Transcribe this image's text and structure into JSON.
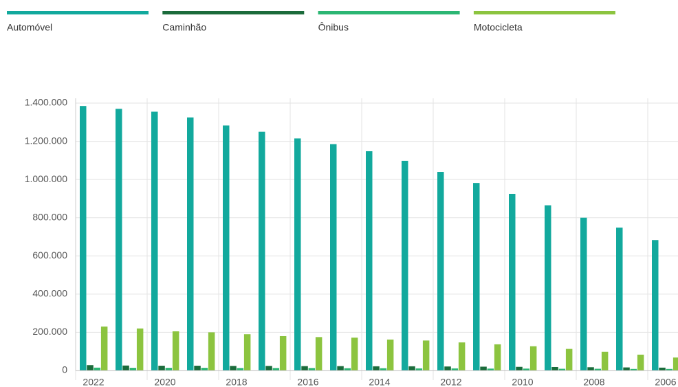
{
  "chart_data": {
    "type": "bar",
    "categories": [
      "2022",
      null,
      "2020",
      null,
      "2018",
      null,
      "2016",
      null,
      "2014",
      null,
      "2012",
      null,
      "2010",
      null,
      "2008",
      null,
      "2006"
    ],
    "series": [
      {
        "name": "Automóvel",
        "color": "#12a99d",
        "values": [
          1385000,
          1370000,
          1355000,
          1325000,
          1283000,
          1250000,
          1215000,
          1185000,
          1148000,
          1098000,
          1040000,
          982000,
          925000,
          865000,
          800000,
          748000,
          683000
        ]
      },
      {
        "name": "Caminhão",
        "color": "#1b6b3b",
        "values": [
          28000,
          26000,
          25000,
          25000,
          24000,
          24000,
          23000,
          23000,
          22000,
          22000,
          21000,
          20000,
          19000,
          18000,
          17000,
          16000,
          15000
        ]
      },
      {
        "name": "Ônibus",
        "color": "#2bb673",
        "values": [
          15000,
          14000,
          14000,
          14000,
          13000,
          13000,
          13000,
          12000,
          12000,
          11000,
          11000,
          10000,
          10000,
          9000,
          9000,
          8000,
          8000
        ]
      },
      {
        "name": "Motocicleta",
        "color": "#8cc43f",
        "values": [
          230000,
          220000,
          205000,
          200000,
          190000,
          180000,
          175000,
          172000,
          162000,
          157000,
          147000,
          137000,
          127000,
          113000,
          98000,
          83000,
          68000
        ]
      }
    ],
    "ylim": [
      0,
      1400000
    ],
    "yticks": [
      0,
      {
        "value": 200000,
        "label": "200.000"
      },
      {
        "value": 400000,
        "label": "400.000"
      },
      {
        "value": 600000,
        "label": "600.000"
      },
      {
        "value": 800000,
        "label": "800.000"
      },
      {
        "value": 1000000,
        "label": "1.000.000"
      },
      {
        "value": 1200000,
        "label": "1.200.000"
      },
      {
        "value": 1400000,
        "label": "1.400.000"
      }
    ],
    "grid": true,
    "legend": "top"
  }
}
